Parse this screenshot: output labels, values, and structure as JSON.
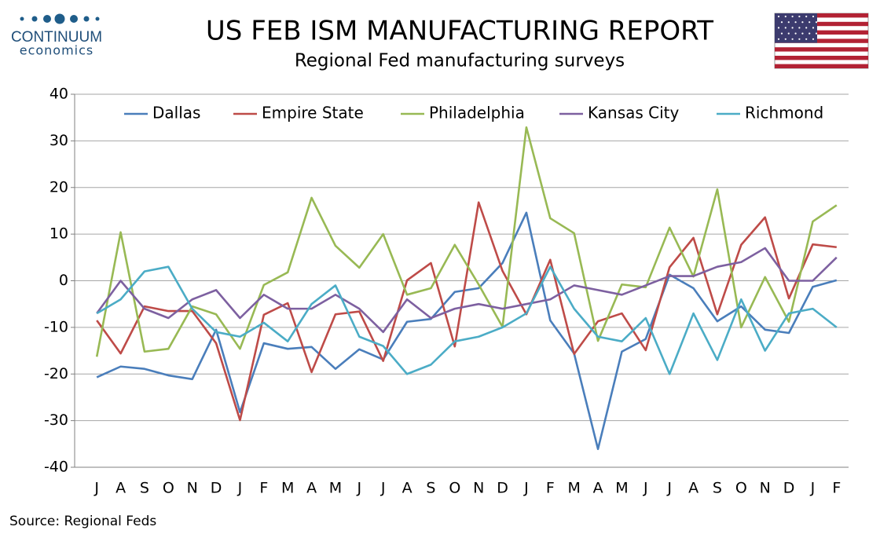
{
  "logo": {
    "name": "CONTINUUM",
    "tagline": "economics"
  },
  "chart_data": {
    "type": "line",
    "title": "US FEB ISM MANUFACTURING REPORT",
    "subtitle": "Regional Fed manufacturing surveys",
    "source": "Source: Regional Feds",
    "categories": [
      "J",
      "A",
      "S",
      "O",
      "N",
      "D",
      "J",
      "F",
      "M",
      "A",
      "M",
      "J",
      "J",
      "A",
      "S",
      "O",
      "N",
      "D",
      "J",
      "F",
      "M",
      "A",
      "M",
      "J",
      "J",
      "A",
      "S",
      "O",
      "N",
      "D",
      "J",
      "F"
    ],
    "ylim": [
      -40,
      40
    ],
    "yticks": [
      -40,
      -30,
      -20,
      -10,
      0,
      10,
      20,
      30,
      40
    ],
    "grid": true,
    "legend": "top",
    "series": [
      {
        "name": "Dallas",
        "color": "#4a7ebb",
        "values": [
          -20.7,
          -18.4,
          -18.9,
          -20.3,
          -21.1,
          -10.5,
          -28.2,
          -13.4,
          -14.6,
          -14.2,
          -18.9,
          -14.7,
          -16.9,
          -8.8,
          -8.2,
          -2.4,
          -1.6,
          3.8,
          14.6,
          -8.5,
          -15.6,
          -36.1,
          -15.2,
          -12.5,
          1.3,
          -1.6,
          -8.7,
          -5.5,
          -10.5,
          -11.2,
          -1.3,
          0.1
        ]
      },
      {
        "name": "Empire State",
        "color": "#be4b48",
        "values": [
          -8.5,
          -15.6,
          -5.5,
          -6.5,
          -6.5,
          -13.4,
          -29.9,
          -7.3,
          -4.8,
          -19.6,
          -7.2,
          -6.6,
          -17.2,
          0.1,
          3.8,
          -14.1,
          16.8,
          2.1,
          -7.2,
          4.5,
          -15.7,
          -8.7,
          -7.0,
          -14.9,
          2.9,
          9.2,
          -7.2,
          7.7,
          13.6,
          -3.8,
          7.8,
          7.2
        ]
      },
      {
        "name": "Philadelphia",
        "color": "#98b954",
        "values": [
          -16.3,
          10.4,
          -15.2,
          -14.6,
          -5.5,
          -7.2,
          -14.6,
          -0.9,
          1.8,
          17.8,
          7.5,
          2.8,
          10.0,
          -3.0,
          -1.6,
          7.7,
          -0.8,
          -9.9,
          32.9,
          13.4,
          10.2,
          -12.9,
          -0.8,
          -1.4,
          11.4,
          0.9,
          19.6,
          -10.0,
          0.8,
          -8.8,
          12.7,
          16.2
        ]
      },
      {
        "name": "Kansas City",
        "color": "#7d60a0",
        "values": [
          -7,
          0,
          -6,
          -8,
          -4,
          -2,
          -8,
          -3,
          -6,
          -6,
          -3,
          -6,
          -11,
          -4,
          -8,
          -6,
          -5,
          -6,
          -5,
          -4,
          -1,
          -2,
          -3,
          -1,
          1,
          1,
          3,
          4,
          7,
          0,
          0,
          5
        ]
      },
      {
        "name": "Richmond",
        "color": "#4bacc6",
        "values": [
          -7,
          -4,
          2,
          3,
          -6,
          -11,
          -12,
          -9,
          -13,
          -5,
          -1,
          -12,
          -14,
          -20,
          -18,
          -13,
          -12,
          -10,
          -7,
          3,
          -6,
          -12,
          -13,
          -8,
          -20,
          -7,
          -17,
          -4,
          -15,
          -7,
          -6,
          -10
        ]
      }
    ]
  }
}
